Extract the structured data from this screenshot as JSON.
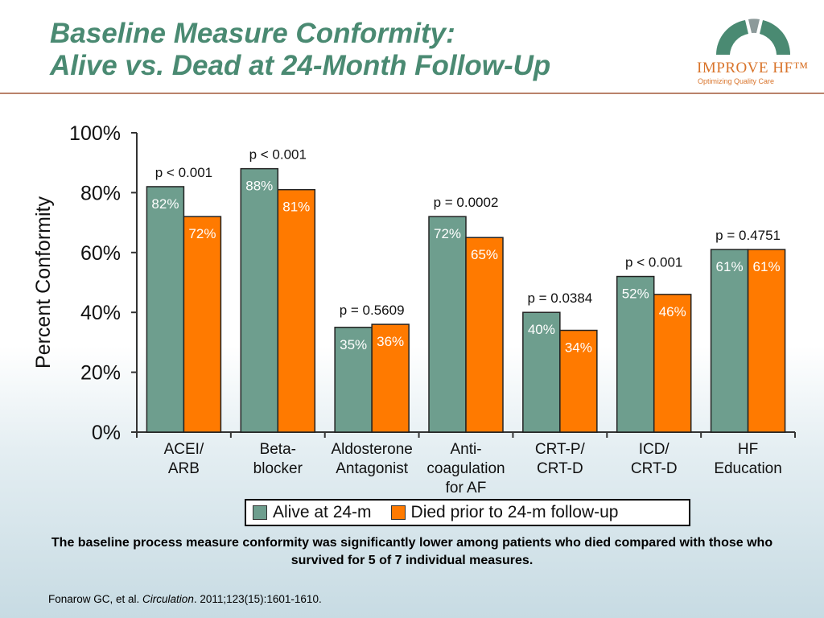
{
  "header": {
    "title_line1": "Baseline Measure Conformity:",
    "title_line2": "Alive vs. Dead at 24-Month Follow-Up"
  },
  "logo": {
    "main": "IMPROVE HF™",
    "tagline": "Optimizing Quality Care",
    "colors": {
      "arc_green": "#4a8a72",
      "arc_gray": "#8c9a9a",
      "text_orange": "#d9742b"
    }
  },
  "colors": {
    "alive": "#6e9e8e",
    "died": "#ff7a00",
    "title": "#4a8a72",
    "rule": "#b9826b"
  },
  "chart_data": {
    "type": "bar",
    "ylabel": "Percent Conformity",
    "ylim": [
      0,
      100
    ],
    "yticks": [
      "0%",
      "20%",
      "40%",
      "60%",
      "80%",
      "100%"
    ],
    "categories": [
      [
        "ACEI/",
        "ARB"
      ],
      [
        "Beta-",
        "blocker"
      ],
      [
        "Aldosterone",
        "Antagonist"
      ],
      [
        "Anti-",
        "coagulation",
        "for AF"
      ],
      [
        "CRT-P/",
        "CRT-D"
      ],
      [
        "ICD/",
        "CRT-D"
      ],
      [
        "HF",
        "Education"
      ]
    ],
    "series": [
      {
        "name": "Alive at 24-m",
        "values": [
          82,
          88,
          35,
          72,
          40,
          52,
          61
        ],
        "labels": [
          "82%",
          "88%",
          "35%",
          "72%",
          "40%",
          "52%",
          "61%"
        ]
      },
      {
        "name": "Died prior to 24-m follow-up",
        "values": [
          72,
          81,
          36,
          65,
          34,
          46,
          61
        ],
        "labels": [
          "72%",
          "81%",
          "36%",
          "65%",
          "34%",
          "46%",
          "61%"
        ]
      }
    ],
    "p_values": [
      "p < 0.001",
      "p < 0.001",
      "p = 0.5609",
      "p = 0.0002",
      "p = 0.0384",
      "p < 0.001",
      "p = 0.4751"
    ],
    "grid": false,
    "legend_position": "bottom"
  },
  "legend": {
    "alive_label": "Alive at 24-m",
    "died_label": "Died prior to 24-m follow-up"
  },
  "conclusion": {
    "text": "The baseline process measure conformity was significantly lower among patients who died compared with those who survived for 5 of 7 individual measures."
  },
  "citation": {
    "authors": "Fonarow GC, et al. ",
    "journal": "Circulation",
    "details": ". 2011;123(15):1601-1610."
  }
}
